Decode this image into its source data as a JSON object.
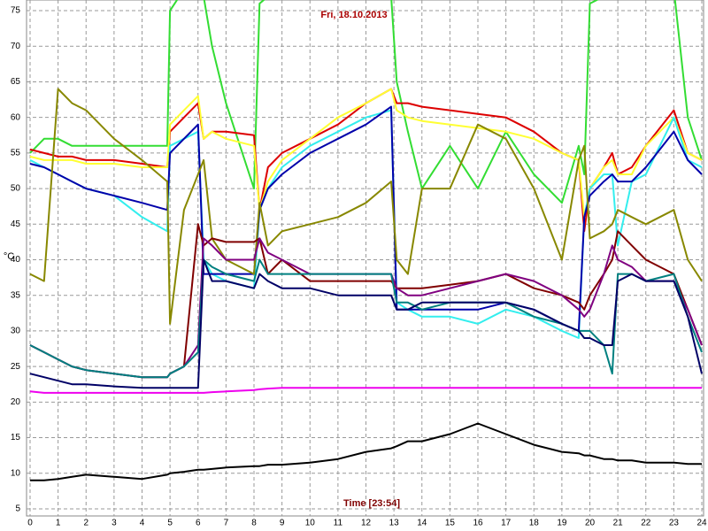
{
  "chart_data": {
    "type": "line",
    "title": "Fri, 18.10.2013",
    "x_label": "Time [23:54]",
    "y_label": "°C",
    "x": [
      0,
      0.5,
      1,
      1.5,
      2,
      3,
      4,
      4.9,
      5,
      5.5,
      6,
      6.2,
      6.5,
      7,
      8,
      8.2,
      8.5,
      9,
      10,
      11,
      12,
      12.9,
      13.1,
      13.5,
      14,
      15,
      16,
      17,
      18,
      19,
      19.6,
      19.8,
      20,
      20.5,
      20.8,
      21,
      21.5,
      22,
      23,
      23.5,
      24
    ],
    "xlim": [
      0,
      24
    ],
    "ylim": [
      4,
      76.5
    ],
    "xticks": [
      0,
      1,
      2,
      3,
      4,
      5,
      6,
      7,
      8,
      9,
      10,
      11,
      12,
      13,
      14,
      15,
      16,
      17,
      18,
      19,
      20,
      21,
      22,
      23,
      24
    ],
    "yticks": [
      5,
      10,
      15,
      20,
      25,
      30,
      35,
      40,
      45,
      50,
      55,
      60,
      65,
      70,
      75
    ],
    "grid": true,
    "series": [
      {
        "color": "#33dd33",
        "values": [
          55,
          57,
          57,
          56,
          56,
          56,
          56,
          56,
          75,
          78,
          78,
          77,
          70,
          62,
          50,
          76,
          77,
          77,
          77,
          77,
          77,
          77,
          65,
          58,
          50,
          56,
          50,
          58,
          52,
          48,
          56,
          52,
          76,
          77,
          78,
          77,
          77,
          77,
          78,
          60,
          54
        ]
      },
      {
        "color": "#dd0000",
        "values": [
          55.5,
          55,
          54.5,
          54.5,
          54,
          54,
          53.5,
          53,
          58,
          60,
          62,
          57,
          58,
          58,
          57.5,
          47,
          53,
          55,
          57,
          59,
          62,
          64,
          62,
          62,
          61.5,
          61,
          60.5,
          60,
          58,
          55,
          54,
          44,
          50,
          53,
          55,
          52,
          53,
          56,
          61,
          55,
          54
        ]
      },
      {
        "color": "#ffff33",
        "values": [
          54.5,
          54,
          54,
          54,
          53.5,
          53.5,
          53,
          53,
          59,
          61,
          63,
          57,
          58,
          57,
          56,
          47,
          51,
          54,
          57,
          60,
          62,
          64,
          61,
          60,
          59.5,
          59,
          58.5,
          58,
          57,
          55,
          54,
          46,
          50,
          53,
          54,
          52,
          52,
          56,
          60,
          55,
          54
        ]
      },
      {
        "color": "#33eeee",
        "values": [
          54,
          53,
          52,
          51,
          50,
          49,
          46,
          44,
          56,
          57,
          58,
          40,
          38,
          37,
          36,
          47,
          50,
          53,
          56,
          58,
          60,
          61,
          34,
          33,
          32,
          32,
          31,
          33,
          32,
          30,
          29,
          46,
          50,
          52,
          52,
          42,
          51,
          52,
          60,
          54,
          53
        ]
      },
      {
        "color": "#0000aa",
        "values": [
          53.5,
          53,
          52,
          51,
          50,
          49,
          48,
          47,
          55,
          57,
          59,
          38,
          38,
          38,
          38,
          47,
          50,
          52,
          55,
          57,
          59,
          61.5,
          33,
          33,
          33,
          33,
          33,
          34,
          33,
          31,
          30,
          46,
          49,
          51,
          52,
          51,
          51,
          53,
          58,
          54,
          52
        ]
      },
      {
        "color": "#888800",
        "values": [
          38,
          37,
          64,
          62,
          61,
          57,
          54,
          51,
          31,
          47,
          52,
          54,
          43,
          40,
          38,
          48,
          42,
          44,
          45,
          46,
          48,
          51,
          40,
          38,
          50,
          50,
          59,
          57,
          50,
          40,
          54,
          56,
          43,
          44,
          45,
          47,
          46,
          45,
          47,
          40,
          37
        ]
      },
      {
        "color": "#800000",
        "values": [
          28,
          27,
          26,
          25,
          24.5,
          24,
          23.5,
          23.5,
          24,
          25,
          45,
          42,
          43,
          42.5,
          42.5,
          43,
          38,
          40,
          37,
          37,
          37,
          37,
          36,
          36,
          36,
          36.5,
          37,
          38,
          36,
          35,
          34,
          33,
          35,
          38,
          40,
          44,
          42,
          40,
          38,
          33,
          28
        ]
      },
      {
        "color": "#800080",
        "values": [
          28,
          27,
          26,
          25,
          24.5,
          24,
          23.5,
          23.5,
          24,
          25,
          28,
          43,
          42,
          40,
          40,
          43,
          41,
          40,
          38,
          38,
          38,
          38,
          36,
          35,
          35,
          36,
          37,
          38,
          37,
          35,
          33,
          32,
          33,
          38,
          42,
          40,
          39,
          37,
          37,
          33,
          28
        ]
      },
      {
        "color": "#008080",
        "values": [
          28,
          27,
          26,
          25,
          24.5,
          24,
          23.5,
          23.5,
          24,
          25,
          27,
          40,
          39,
          38,
          37,
          40,
          38,
          38,
          38,
          38,
          38,
          38,
          34,
          34,
          33,
          34,
          34,
          34,
          32,
          31,
          30,
          30,
          30,
          28,
          24,
          38,
          38,
          37,
          38,
          32,
          27
        ]
      },
      {
        "color": "#000066",
        "values": [
          24,
          23.5,
          23,
          22.5,
          22.5,
          22.2,
          22,
          22,
          22,
          22,
          22,
          40,
          37,
          37,
          36,
          38,
          37,
          36,
          36,
          35,
          35,
          35,
          33,
          33,
          34,
          34,
          34,
          34,
          33,
          31,
          30,
          29,
          29,
          28,
          28,
          37,
          38,
          37,
          37,
          32,
          24
        ]
      },
      {
        "color": "#ee00ee",
        "values": [
          21.5,
          21.3,
          21.3,
          21.3,
          21.3,
          21.3,
          21.3,
          21.3,
          21.3,
          21.3,
          21.3,
          21.3,
          21.4,
          21.5,
          21.7,
          21.8,
          21.9,
          22,
          22,
          22,
          22,
          22,
          22,
          22,
          22,
          22,
          22,
          22,
          22,
          22,
          22,
          22,
          22,
          22,
          22,
          22,
          22,
          22,
          22,
          22,
          22
        ]
      },
      {
        "color": "#000000",
        "values": [
          9,
          9,
          9.2,
          9.5,
          9.8,
          9.5,
          9.2,
          9.8,
          10,
          10.2,
          10.5,
          10.5,
          10.6,
          10.8,
          11,
          11,
          11.2,
          11.2,
          11.5,
          12,
          13,
          13.5,
          13.8,
          14.5,
          14.5,
          15.5,
          17,
          15.5,
          14,
          13,
          12.8,
          12.5,
          12.5,
          12,
          12,
          11.8,
          11.8,
          11.5,
          11.5,
          11.3,
          11.3
        ]
      }
    ]
  }
}
